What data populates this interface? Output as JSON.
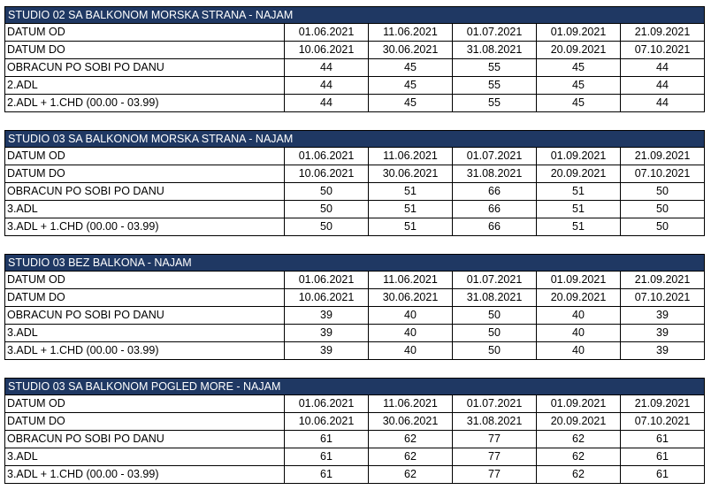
{
  "sections": [
    {
      "title": "STUDIO 02 SA BALKONOM MORSKA STRANA - NAJAM",
      "rows": [
        {
          "label": "DATUM OD",
          "values": [
            "01.06.2021",
            "11.06.2021",
            "01.07.2021",
            "01.09.2021",
            "21.09.2021"
          ]
        },
        {
          "label": "DATUM DO",
          "values": [
            "10.06.2021",
            "30.06.2021",
            "31.08.2021",
            "20.09.2021",
            "07.10.2021"
          ]
        },
        {
          "label": "OBRACUN PO SOBI PO DANU",
          "values": [
            "44",
            "45",
            "55",
            "45",
            "44"
          ]
        },
        {
          "label": "2.ADL",
          "values": [
            "44",
            "45",
            "55",
            "45",
            "44"
          ]
        },
        {
          "label": "2.ADL + 1.CHD (00.00 - 03.99)",
          "values": [
            "44",
            "45",
            "55",
            "45",
            "44"
          ]
        }
      ]
    },
    {
      "title": "STUDIO 03  SA BALKONOM MORSKA STRANA - NAJAM",
      "rows": [
        {
          "label": "DATUM OD",
          "values": [
            "01.06.2021",
            "11.06.2021",
            "01.07.2021",
            "01.09.2021",
            "21.09.2021"
          ]
        },
        {
          "label": "DATUM DO",
          "values": [
            "10.06.2021",
            "30.06.2021",
            "31.08.2021",
            "20.09.2021",
            "07.10.2021"
          ]
        },
        {
          "label": "OBRACUN PO SOBI PO DANU",
          "values": [
            "50",
            "51",
            "66",
            "51",
            "50"
          ]
        },
        {
          "label": "3.ADL",
          "values": [
            "50",
            "51",
            "66",
            "51",
            "50"
          ]
        },
        {
          "label": "3.ADL + 1.CHD (00.00 - 03.99)",
          "values": [
            "50",
            "51",
            "66",
            "51",
            "50"
          ]
        }
      ]
    },
    {
      "title": "STUDIO 03 BEZ BALKONA - NAJAM",
      "rows": [
        {
          "label": "DATUM OD",
          "values": [
            "01.06.2021",
            "11.06.2021",
            "01.07.2021",
            "01.09.2021",
            "21.09.2021"
          ]
        },
        {
          "label": "DATUM DO",
          "values": [
            "10.06.2021",
            "30.06.2021",
            "31.08.2021",
            "20.09.2021",
            "07.10.2021"
          ]
        },
        {
          "label": "OBRACUN PO SOBI PO DANU",
          "values": [
            "39",
            "40",
            "50",
            "40",
            "39"
          ]
        },
        {
          "label": "3.ADL",
          "values": [
            "39",
            "40",
            "50",
            "40",
            "39"
          ]
        },
        {
          "label": "3.ADL + 1.CHD (00.00 - 03.99)",
          "values": [
            "39",
            "40",
            "50",
            "40",
            "39"
          ]
        }
      ]
    },
    {
      "title": "STUDIO 03 SA BALKONOM POGLED MORE - NAJAM",
      "rows": [
        {
          "label": "DATUM OD",
          "values": [
            "01.06.2021",
            "11.06.2021",
            "01.07.2021",
            "01.09.2021",
            "21.09.2021"
          ]
        },
        {
          "label": "DATUM DO",
          "values": [
            "10.06.2021",
            "30.06.2021",
            "31.08.2021",
            "20.09.2021",
            "07.10.2021"
          ]
        },
        {
          "label": "OBRACUN PO SOBI PO DANU",
          "values": [
            "61",
            "62",
            "77",
            "62",
            "61"
          ]
        },
        {
          "label": "3.ADL",
          "values": [
            "61",
            "62",
            "77",
            "62",
            "61"
          ]
        },
        {
          "label": "3.ADL + 1.CHD (00.00 - 03.99)",
          "values": [
            "61",
            "62",
            "77",
            "62",
            "61"
          ]
        }
      ]
    }
  ]
}
